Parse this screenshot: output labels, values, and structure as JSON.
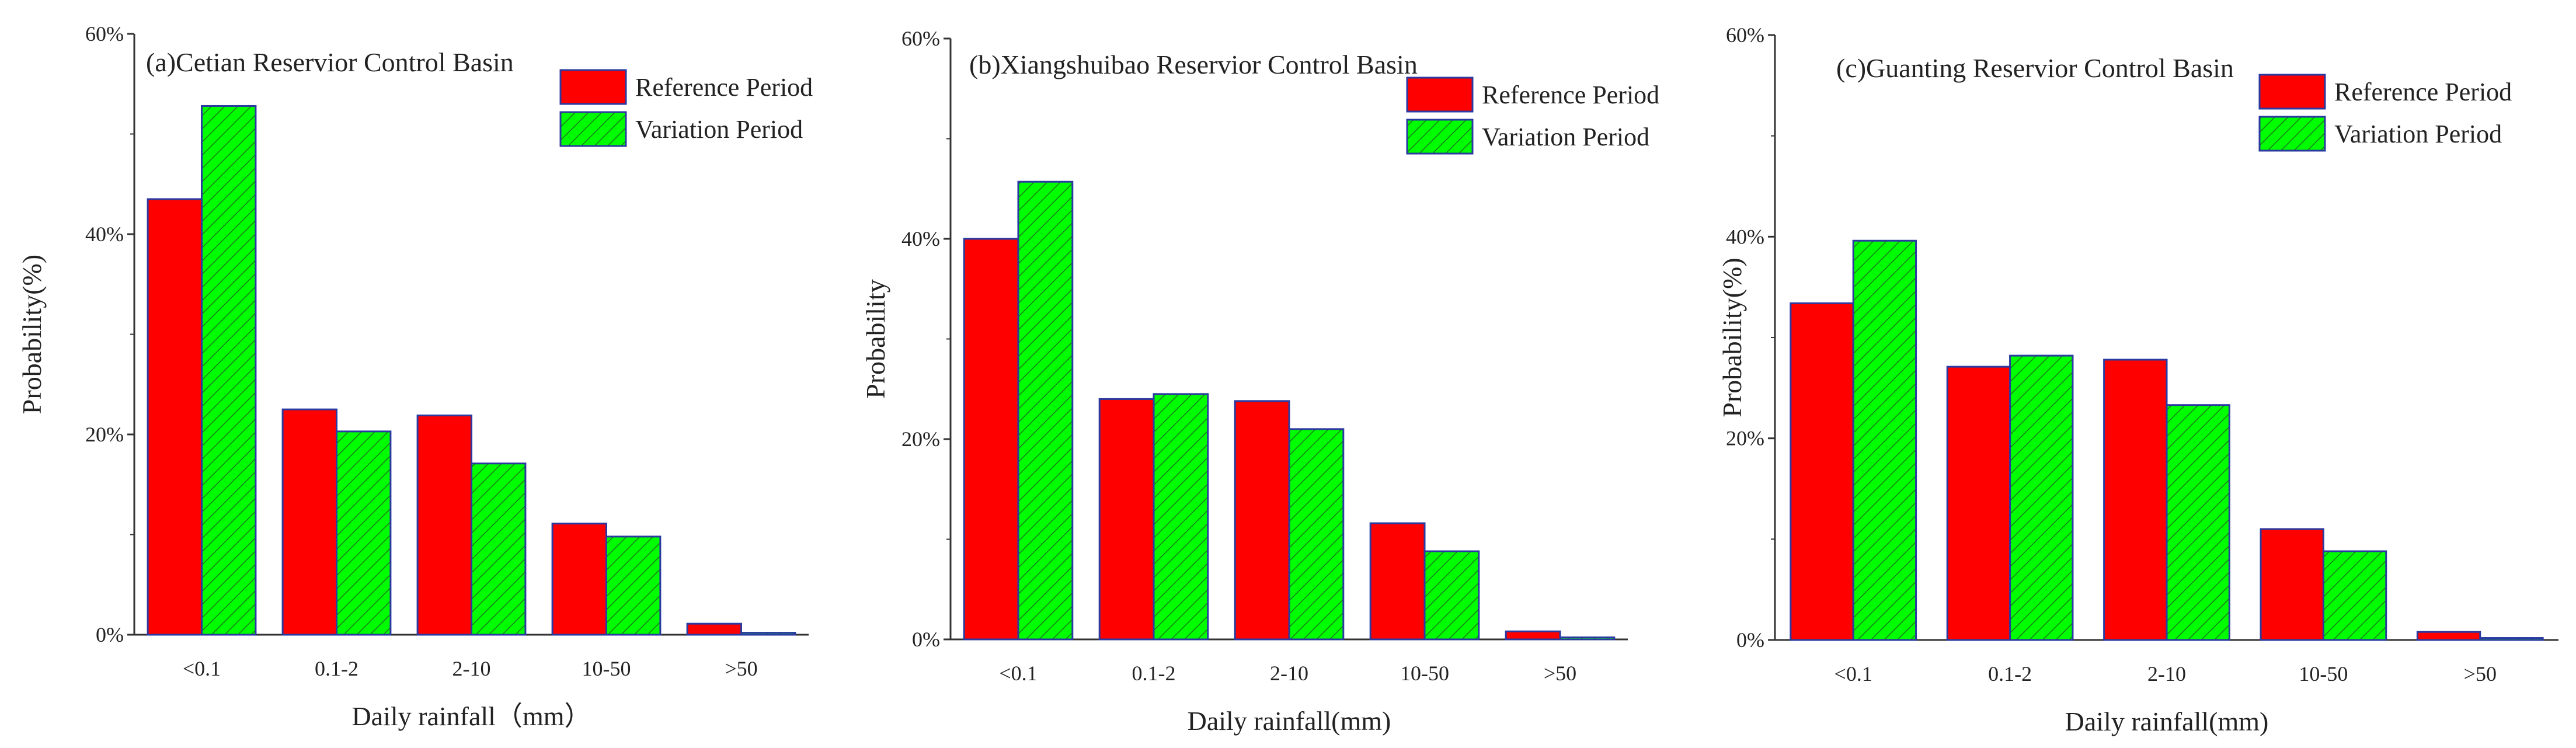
{
  "colors": {
    "reference_fill": "#ff0000",
    "variation_fill": "#00ff00",
    "variation_hatch": "#1a7a1a",
    "bar_stroke": "#2a3aa0",
    "axis": "#333333",
    "text": "#222222"
  },
  "chart_data": [
    {
      "type": "bar",
      "title": "(a)Cetian Reservior Control Basin",
      "xlabel": "Daily rainfall（mm）",
      "ylabel": "Probability(%)",
      "ylim": [
        0,
        60
      ],
      "yticks": [
        0,
        20,
        40,
        60
      ],
      "ytick_labels": [
        "0%",
        "20%",
        "40%",
        "60%"
      ],
      "categories": [
        "<0.1",
        "0.1-2",
        "2-10",
        "10-50",
        ">50"
      ],
      "legend_position": "top-right",
      "series": [
        {
          "name": "Reference Period",
          "values": [
            43.5,
            22.5,
            21.9,
            11.1,
            1.1
          ]
        },
        {
          "name": "Variation Period",
          "values": [
            52.8,
            20.3,
            17.1,
            9.8,
            0.2
          ]
        }
      ]
    },
    {
      "type": "bar",
      "title": "(b)Xiangshuibao Reservior Control Basin",
      "xlabel": "Daily rainfall(mm)",
      "ylabel": "Probability",
      "ylim": [
        0,
        60
      ],
      "yticks": [
        0,
        20,
        40,
        60
      ],
      "ytick_labels": [
        "0%",
        "20%",
        "40%",
        "60%"
      ],
      "categories": [
        "<0.1",
        "0.1-2",
        "2-10",
        "10-50",
        ">50"
      ],
      "legend_position": "top-right",
      "series": [
        {
          "name": "Reference Period",
          "values": [
            40.0,
            24.0,
            23.8,
            11.6,
            0.8
          ]
        },
        {
          "name": "Variation Period",
          "values": [
            45.7,
            24.5,
            21.0,
            8.8,
            0.2
          ]
        }
      ]
    },
    {
      "type": "bar",
      "title": "(c)Guanting Reservior Control Basin",
      "xlabel": "Daily rainfall(mm)",
      "ylabel": "Probability(%)",
      "ylim": [
        0,
        60
      ],
      "yticks": [
        0,
        20,
        40,
        60
      ],
      "ytick_labels": [
        "0%",
        "20%",
        "40%",
        "60%"
      ],
      "categories": [
        "<0.1",
        "0.1-2",
        "2-10",
        "10-50",
        ">50"
      ],
      "legend_position": "top-right",
      "series": [
        {
          "name": "Reference Period",
          "values": [
            33.4,
            27.1,
            27.8,
            11.0,
            0.8
          ]
        },
        {
          "name": "Variation Period",
          "values": [
            39.6,
            28.2,
            23.3,
            8.8,
            0.2
          ]
        }
      ]
    }
  ]
}
